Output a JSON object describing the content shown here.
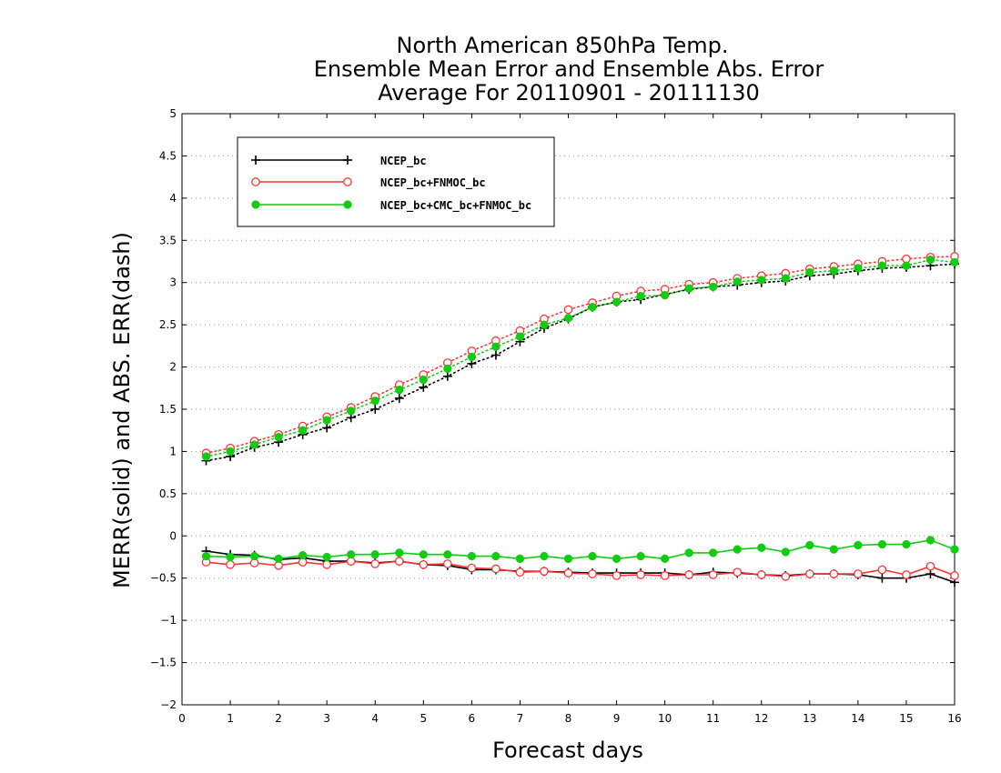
{
  "chart_data": {
    "type": "line",
    "title": [
      "North American 850hPa Temp.",
      "Ensemble Mean Error and Ensemble Abs. Error",
      "Average For 20110901 - 20111130"
    ],
    "xlabel": "Forecast days",
    "ylabel": "MERR(solid) and ABS. ERR(dash)",
    "xlim": [
      0,
      16
    ],
    "ylim": [
      -2,
      5
    ],
    "xticks": [
      0,
      1,
      2,
      3,
      4,
      5,
      6,
      7,
      8,
      9,
      10,
      11,
      12,
      13,
      14,
      15,
      16
    ],
    "xtick_labels": [
      "0",
      "1",
      "2",
      "3",
      "4",
      "5",
      "6",
      "7",
      "8",
      "9",
      "10",
      "11",
      "12",
      "13",
      "14",
      "15",
      "16"
    ],
    "yticks": [
      -2,
      -1.5,
      -1,
      -0.5,
      0,
      0.5,
      1,
      1.5,
      2,
      2.5,
      3,
      3.5,
      4,
      4.5,
      5
    ],
    "ytick_labels": [
      "−2",
      "−1.5",
      "−1",
      "−0.5",
      "0",
      "0.5",
      "1",
      "1.5",
      "2",
      "2.5",
      "3",
      "3.5",
      "4",
      "4.5",
      "5"
    ],
    "grid": "horizontal dotted",
    "legend_position": "top-left",
    "x": [
      0.5,
      1,
      1.5,
      2,
      2.5,
      3,
      3.5,
      4,
      4.5,
      5,
      5.5,
      6,
      6.5,
      7,
      7.5,
      8,
      8.5,
      9,
      9.5,
      10,
      10.5,
      11,
      11.5,
      12,
      12.5,
      13,
      13.5,
      14,
      14.5,
      15,
      15.5,
      16
    ],
    "series": [
      {
        "name": "NCEP_bc",
        "color": "#000000",
        "marker": "plus",
        "merr": [
          -0.18,
          -0.22,
          -0.23,
          -0.28,
          -0.26,
          -0.3,
          -0.3,
          -0.32,
          -0.3,
          -0.34,
          -0.35,
          -0.4,
          -0.4,
          -0.42,
          -0.42,
          -0.43,
          -0.44,
          -0.44,
          -0.44,
          -0.44,
          -0.46,
          -0.43,
          -0.44,
          -0.46,
          -0.47,
          -0.45,
          -0.45,
          -0.46,
          -0.5,
          -0.5,
          -0.45,
          -0.55
        ],
        "abs_err": [
          0.89,
          0.94,
          1.05,
          1.11,
          1.2,
          1.28,
          1.4,
          1.5,
          1.63,
          1.76,
          1.89,
          2.04,
          2.14,
          2.3,
          2.46,
          2.57,
          2.71,
          2.77,
          2.8,
          2.86,
          2.92,
          2.95,
          2.97,
          3.0,
          3.02,
          3.08,
          3.1,
          3.14,
          3.17,
          3.18,
          3.2,
          3.22
        ]
      },
      {
        "name": "NCEP_bc+FNMOC_bc",
        "color": "#ff3333",
        "marker": "open-circle",
        "merr": [
          -0.31,
          -0.34,
          -0.32,
          -0.35,
          -0.31,
          -0.34,
          -0.3,
          -0.33,
          -0.3,
          -0.34,
          -0.33,
          -0.38,
          -0.39,
          -0.43,
          -0.42,
          -0.44,
          -0.45,
          -0.47,
          -0.46,
          -0.47,
          -0.46,
          -0.46,
          -0.43,
          -0.46,
          -0.48,
          -0.45,
          -0.45,
          -0.45,
          -0.4,
          -0.46,
          -0.36,
          -0.47
        ],
        "abs_err": [
          0.98,
          1.04,
          1.12,
          1.2,
          1.3,
          1.41,
          1.52,
          1.65,
          1.79,
          1.91,
          2.05,
          2.19,
          2.31,
          2.43,
          2.57,
          2.68,
          2.76,
          2.84,
          2.9,
          2.92,
          2.98,
          3.0,
          3.05,
          3.08,
          3.11,
          3.16,
          3.19,
          3.22,
          3.25,
          3.28,
          3.3,
          3.31
        ]
      },
      {
        "name": "NCEP_bc+CMC_bc+FNMOC_bc",
        "color": "#11cc11",
        "marker": "filled-circle",
        "merr": [
          -0.24,
          -0.25,
          -0.24,
          -0.27,
          -0.23,
          -0.25,
          -0.22,
          -0.22,
          -0.2,
          -0.22,
          -0.22,
          -0.24,
          -0.24,
          -0.27,
          -0.24,
          -0.27,
          -0.24,
          -0.27,
          -0.24,
          -0.27,
          -0.2,
          -0.2,
          -0.16,
          -0.14,
          -0.19,
          -0.11,
          -0.16,
          -0.11,
          -0.1,
          -0.1,
          -0.05,
          -0.16
        ],
        "abs_err": [
          0.94,
          1.0,
          1.08,
          1.17,
          1.25,
          1.37,
          1.48,
          1.6,
          1.73,
          1.85,
          1.98,
          2.12,
          2.24,
          2.36,
          2.5,
          2.58,
          2.71,
          2.77,
          2.84,
          2.85,
          2.93,
          2.95,
          3.01,
          3.03,
          3.05,
          3.12,
          3.14,
          3.17,
          3.2,
          3.2,
          3.27,
          3.24
        ]
      }
    ]
  }
}
